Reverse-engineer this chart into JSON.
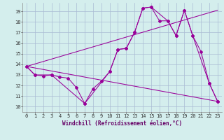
{
  "background_color": "#d4eeed",
  "grid_color": "#aabbd4",
  "line_color": "#990099",
  "xlim": [
    -0.5,
    23.5
  ],
  "ylim": [
    9.5,
    19.8
  ],
  "yticks": [
    10,
    11,
    12,
    13,
    14,
    15,
    16,
    17,
    18,
    19
  ],
  "xticks": [
    0,
    1,
    2,
    3,
    4,
    5,
    6,
    7,
    8,
    9,
    10,
    11,
    12,
    13,
    14,
    15,
    16,
    17,
    18,
    19,
    20,
    21,
    22,
    23
  ],
  "xlabel": "Windchill (Refroidissement éolien,°C)",
  "line_main": {
    "x": [
      0,
      1,
      2,
      3,
      4,
      5,
      6,
      7,
      8,
      9,
      10,
      11,
      12,
      13,
      14,
      15,
      16,
      17,
      18,
      19,
      20,
      21,
      22,
      23
    ],
    "y": [
      13.8,
      13.0,
      12.9,
      13.0,
      12.8,
      12.7,
      11.8,
      10.3,
      11.7,
      12.4,
      13.3,
      15.4,
      15.5,
      17.0,
      19.3,
      19.4,
      18.1,
      18.1,
      16.7,
      19.1,
      16.7,
      15.2,
      12.2,
      10.5
    ]
  },
  "line_subset": {
    "x": [
      0,
      1,
      3,
      7,
      10,
      11,
      12,
      13,
      14,
      15,
      17,
      18,
      19,
      20,
      22,
      23
    ],
    "y": [
      13.8,
      13.0,
      13.0,
      10.3,
      13.3,
      15.4,
      15.5,
      17.0,
      19.3,
      19.4,
      18.1,
      16.7,
      19.1,
      16.7,
      12.2,
      10.5
    ]
  },
  "line_low": {
    "x": [
      0,
      23
    ],
    "y": [
      13.8,
      10.5
    ]
  },
  "line_high": {
    "x": [
      0,
      23
    ],
    "y": [
      13.8,
      19.1
    ]
  },
  "axis_fontsize": 5.5,
  "tick_fontsize": 5.0
}
